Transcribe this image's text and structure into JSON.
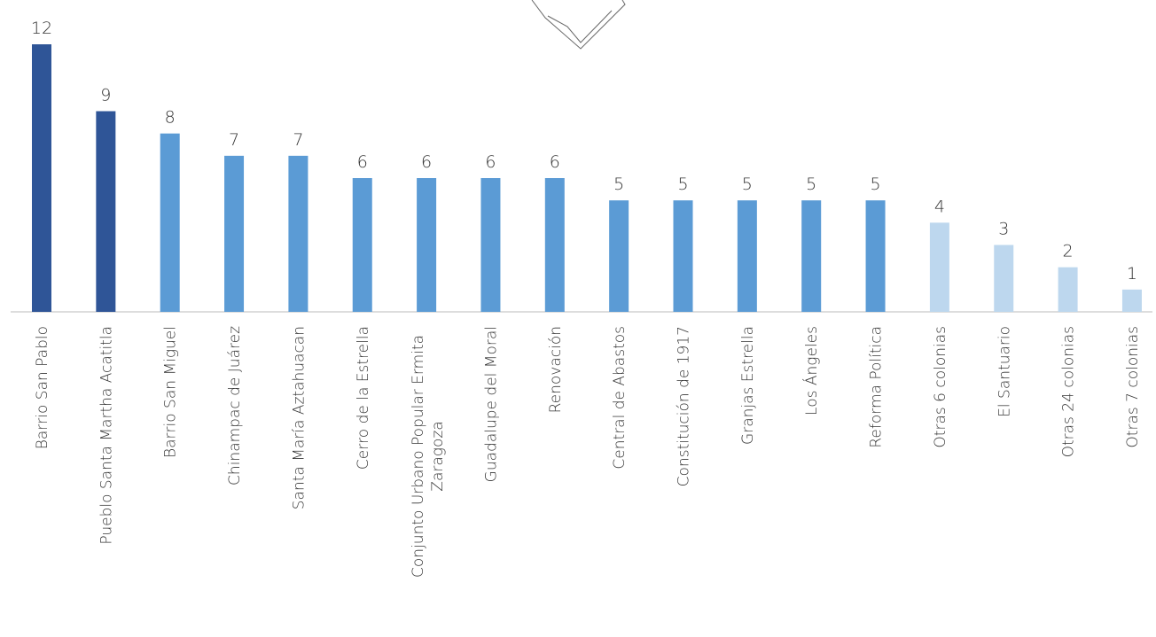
{
  "chart_data": {
    "type": "bar",
    "categories": [
      "Barrio San Pablo",
      "Pueblo Santa Martha Acatitla",
      "Barrio San Miguel",
      "Chinampac de Juárez",
      "Santa María Aztahuacan",
      "Cerro de la Estrella",
      "Conjunto Urbano Popular Ermita Zaragoza",
      "Guadalupe del Moral",
      "Renovación",
      "Central de Abastos",
      "Constitución de 1917",
      "Granjas Estrella",
      "Los Ángeles",
      "Reforma Política",
      "Otras 6 colonias",
      "El Santuario",
      "Otras 24 colonias",
      "Otras 7 colonias"
    ],
    "values": [
      12,
      9,
      8,
      7,
      7,
      6,
      6,
      6,
      6,
      5,
      5,
      5,
      5,
      5,
      4,
      3,
      2,
      1
    ],
    "colors": [
      "#2f5597",
      "#2f5597",
      "#5b9bd5",
      "#5b9bd5",
      "#5b9bd5",
      "#5b9bd5",
      "#5b9bd5",
      "#5b9bd5",
      "#5b9bd5",
      "#5b9bd5",
      "#5b9bd5",
      "#5b9bd5",
      "#5b9bd5",
      "#5b9bd5",
      "#bdd7ee",
      "#bdd7ee",
      "#bdd7ee",
      "#bdd7ee"
    ]
  }
}
